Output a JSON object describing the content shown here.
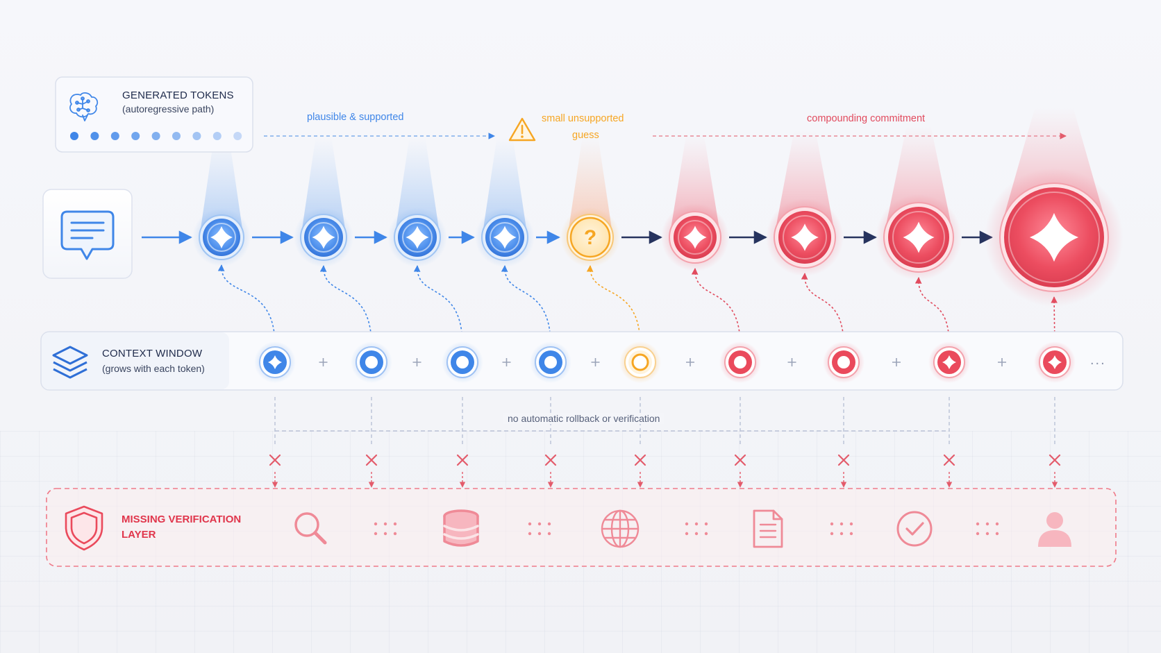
{
  "generated_tokens": {
    "title": "GENERATED TOKENS",
    "subtitle": "(autoregressive path)"
  },
  "context_window": {
    "title": "CONTEXT WINDOW",
    "subtitle": "(grows with each token)"
  },
  "phases": {
    "plausible": "plausible & supported",
    "guess_line1": "small unsupported",
    "guess_line2": "guess",
    "compounding": "compounding commitment"
  },
  "rollback_note": "no automatic rollback or verification",
  "verification": {
    "title_line1": "MISSING VERIFICATION",
    "title_line2": "LAYER"
  },
  "token_states": [
    "supported",
    "supported",
    "supported",
    "supported",
    "guess",
    "compounding",
    "compounding",
    "compounding",
    "compounding"
  ],
  "guess_symbol": "?",
  "context_ellipsis": "...",
  "verification_icons": [
    "search-icon",
    "database-icon",
    "globe-icon",
    "document-icon",
    "check-circle-icon",
    "user-icon"
  ],
  "colors": {
    "blue": "#3f86e8",
    "orange": "#f6a623",
    "red": "#ea4a5c",
    "navy": "#1f2c55",
    "pink_border": "#f07a88"
  }
}
